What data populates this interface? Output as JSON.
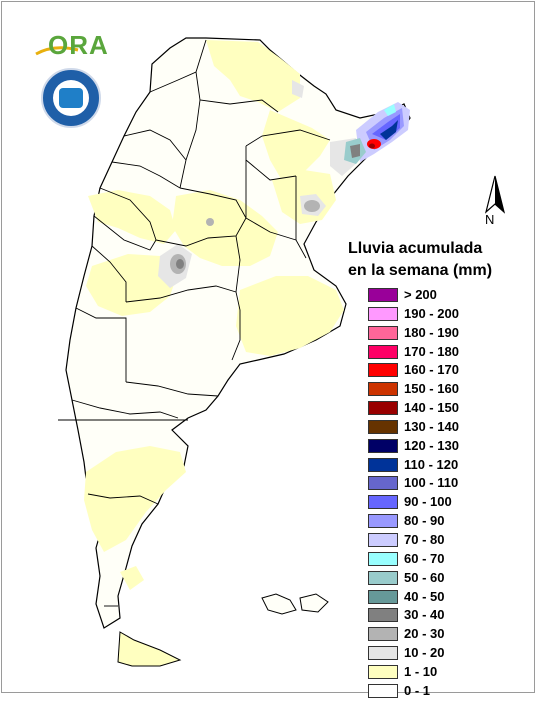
{
  "legend": {
    "title_line1": "Lluvia acumulada",
    "title_line2": "en la semana (mm)",
    "items": [
      {
        "label": "> 200",
        "color": "#990099"
      },
      {
        "label": "190 - 200",
        "color": "#ff99ff"
      },
      {
        "label": "180 - 190",
        "color": "#ff6699"
      },
      {
        "label": "170 - 180",
        "color": "#ff0066"
      },
      {
        "label": "160 - 170",
        "color": "#ff0000"
      },
      {
        "label": "150 - 160",
        "color": "#cc3300"
      },
      {
        "label": "140 - 150",
        "color": "#990000"
      },
      {
        "label": "130 - 140",
        "color": "#663300"
      },
      {
        "label": "120 - 130",
        "color": "#000066"
      },
      {
        "label": "110 - 120",
        "color": "#003399"
      },
      {
        "label": "100 - 110",
        "color": "#6666cc"
      },
      {
        "label": "90 - 100",
        "color": "#6666ff"
      },
      {
        "label": "80 - 90",
        "color": "#9999ff"
      },
      {
        "label": "70 - 80",
        "color": "#ccccff"
      },
      {
        "label": "60 - 70",
        "color": "#99ffff"
      },
      {
        "label": "50 - 60",
        "color": "#99cccc"
      },
      {
        "label": "40 - 50",
        "color": "#669999"
      },
      {
        "label": "30 - 40",
        "color": "#808080"
      },
      {
        "label": "20 - 30",
        "color": "#b3b3b3"
      },
      {
        "label": "10 - 20",
        "color": "#e6e6e6"
      },
      {
        "label": "1 - 10",
        "color": "#ffffc0"
      },
      {
        "label": "0 - 1",
        "color": "#ffffff"
      }
    ]
  },
  "logos": {
    "ora_text": "ORA",
    "ora_color": "#5aa63c",
    "smn_color": "#1f5fa8"
  },
  "north_arrow": {
    "label": "N"
  },
  "map_colors": {
    "land": "#fffff8",
    "light_rain": "#ffffc0",
    "border": "#000000"
  }
}
